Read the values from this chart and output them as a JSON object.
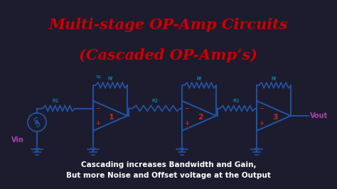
{
  "title_line1": "Multi-stage OP-Amp Circuits",
  "title_line2": "(Cascaded OP-Amp’s)",
  "title_color": "#cc0000",
  "title_fontsize": 15,
  "bg_color": "#1a1a2e",
  "circuit_color": "#1a3a6e",
  "label_color_cyan": "#00aacc",
  "label_color_red": "#cc0000",
  "label_color_purple": "#880088",
  "caption_line1": "Cascading increases Bandwidth and Gain,",
  "caption_line2": "But more Noise and Offset voltage at the Output",
  "caption_fontsize": 7.5
}
